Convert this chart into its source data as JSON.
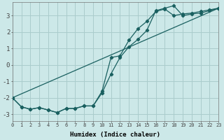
{
  "xlabel": "Humidex (Indice chaleur)",
  "bg_color": "#cce8e8",
  "grid_color": "#aacccc",
  "line_color": "#1a6060",
  "xlim": [
    0,
    23
  ],
  "ylim": [
    -3.4,
    3.8
  ],
  "x_ticks": [
    0,
    1,
    2,
    3,
    4,
    5,
    6,
    7,
    8,
    9,
    10,
    11,
    12,
    13,
    14,
    15,
    16,
    17,
    18,
    19,
    20,
    21,
    22,
    23
  ],
  "y_ticks": [
    -3,
    -2,
    -1,
    0,
    1,
    2,
    3
  ],
  "line1_x": [
    0,
    1,
    2,
    3,
    4,
    5,
    6,
    7,
    8,
    9,
    10,
    11,
    12,
    13,
    14,
    15,
    16,
    17,
    18,
    19,
    20,
    21,
    22,
    23
  ],
  "line1_y": [
    -2.0,
    -2.55,
    -2.7,
    -2.6,
    -2.75,
    -2.9,
    -2.65,
    -2.65,
    -2.5,
    -2.5,
    -1.6,
    0.45,
    0.55,
    1.5,
    2.2,
    2.65,
    3.25,
    3.4,
    3.0,
    3.1,
    3.15,
    3.25,
    3.35,
    3.45
  ],
  "line2_x": [
    0,
    1,
    2,
    3,
    4,
    5,
    6,
    7,
    8,
    9,
    10,
    11,
    12,
    13,
    14,
    15,
    16,
    17,
    18,
    19,
    20,
    21,
    22,
    23
  ],
  "line2_y": [
    -2.0,
    -2.55,
    -2.7,
    -2.6,
    -2.75,
    -2.9,
    -2.65,
    -2.65,
    -2.5,
    -2.5,
    -1.7,
    -0.55,
    0.45,
    1.1,
    1.55,
    2.1,
    3.3,
    3.45,
    3.6,
    3.0,
    3.1,
    3.15,
    3.3,
    3.45
  ],
  "line3_x": [
    0,
    23
  ],
  "line3_y": [
    -2.0,
    3.45
  ],
  "marker_x": [
    0,
    1,
    2,
    3,
    4,
    5,
    6,
    7,
    8,
    9,
    10,
    11,
    12,
    13,
    14,
    15,
    16,
    17,
    18,
    19,
    20,
    21,
    22,
    23
  ]
}
